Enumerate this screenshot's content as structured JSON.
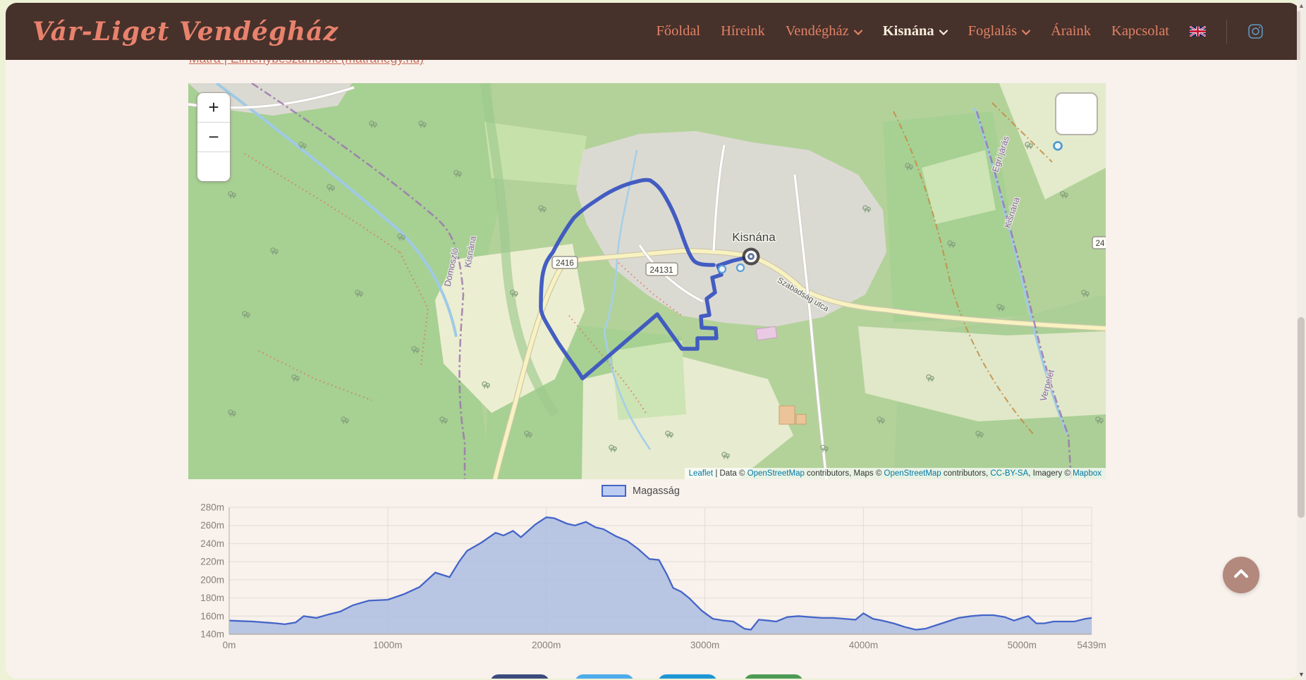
{
  "header": {
    "logo": "Vár-Liget Vendégház",
    "nav": {
      "items": [
        {
          "label": "Főoldal",
          "dropdown": false,
          "active": false
        },
        {
          "label": "Híreink",
          "dropdown": false,
          "active": false
        },
        {
          "label": "Vendégház",
          "dropdown": true,
          "active": false
        },
        {
          "label": "Kisnána",
          "dropdown": true,
          "active": true
        },
        {
          "label": "Foglalás",
          "dropdown": true,
          "active": false
        },
        {
          "label": "Áraink",
          "dropdown": false,
          "active": false
        },
        {
          "label": "Kapcsolat",
          "dropdown": false,
          "active": false
        }
      ],
      "language_icon": "uk-flag-icon",
      "social_icon": "instagram-icon"
    },
    "colors": {
      "background": "#47312b",
      "link": "#e08265",
      "active_link": "#f8eedd"
    }
  },
  "breadcrumb": {
    "link_text": "Mátra | Élménybeszámolók (matrahegy.hu)"
  },
  "map": {
    "place_label": "Kisnána",
    "street_label": "Szabadság utca",
    "road_shields": {
      "s2416": "2416",
      "s24131": "24131",
      "s24": "24"
    },
    "boundary_labels": {
      "left_east": "Kisnána",
      "left_west": "Domoszló",
      "right_north": "Egri járás",
      "right_south": "Kisnána",
      "right_low": "Verpelét"
    },
    "controls": {
      "zoom_in": "+",
      "zoom_out": "−"
    },
    "attribution": {
      "leaflet": "Leaflet",
      "sep1": " | Data © ",
      "osm1": "OpenStreetMap",
      "mid1": " contributors, Maps © ",
      "osm2": "OpenStreetMap",
      "mid2": " contributors, ",
      "ccbysa": "CC-BY-SA",
      "mid3": ", Imagery © ",
      "mapbox": "Mapbox"
    },
    "route_color": "#3b55c0"
  },
  "chart_data": {
    "type": "area",
    "title": "",
    "legend": [
      {
        "label": "Magasság",
        "fill": "#bdcdf2",
        "stroke": "#4465c8"
      }
    ],
    "xlabel": "",
    "ylabel": "",
    "x_unit": "m",
    "y_unit": "m",
    "xlim": [
      0,
      5439
    ],
    "ylim": [
      140,
      280
    ],
    "x_ticks": [
      0,
      1000,
      2000,
      3000,
      4000,
      5000,
      5439
    ],
    "y_ticks": [
      140,
      160,
      180,
      200,
      220,
      240,
      260,
      280
    ],
    "grid": true,
    "legend_position": "top-center",
    "series": [
      {
        "name": "Magasság",
        "x": [
          0,
          150,
          300,
          350,
          420,
          470,
          550,
          630,
          700,
          780,
          880,
          1000,
          1100,
          1200,
          1250,
          1300,
          1390,
          1450,
          1500,
          1590,
          1680,
          1730,
          1790,
          1840,
          1930,
          2000,
          2050,
          2130,
          2180,
          2250,
          2310,
          2360,
          2440,
          2510,
          2580,
          2650,
          2710,
          2760,
          2800,
          2850,
          2900,
          2980,
          3050,
          3120,
          3180,
          3250,
          3290,
          3340,
          3400,
          3450,
          3520,
          3590,
          3660,
          3740,
          3810,
          3880,
          3950,
          4000,
          4060,
          4120,
          4190,
          4260,
          4330,
          4390,
          4460,
          4530,
          4600,
          4680,
          4750,
          4820,
          4890,
          4950,
          5000,
          5040,
          5090,
          5140,
          5200,
          5260,
          5330,
          5400,
          5439
        ],
        "y": [
          155,
          154,
          152,
          151,
          153,
          160,
          158,
          162,
          165,
          172,
          177,
          178,
          184,
          192,
          200,
          208,
          203,
          220,
          232,
          241,
          252,
          249,
          254,
          247,
          261,
          269,
          268,
          262,
          260,
          264,
          258,
          256,
          248,
          243,
          234,
          223,
          222,
          206,
          191,
          187,
          180,
          166,
          157,
          155,
          154,
          146,
          145,
          156,
          155,
          154,
          159,
          160,
          159,
          158,
          158,
          157,
          156,
          163,
          157,
          155,
          152,
          148,
          145,
          146,
          150,
          154,
          158,
          160,
          161,
          161,
          159,
          155,
          158,
          160,
          152,
          152,
          154,
          154,
          154,
          157,
          158
        ]
      }
    ],
    "area_fill": "#a9bce1",
    "line_color": "#4465c8"
  },
  "footer_buttons": [
    {
      "name": "share-button-1",
      "color": "#3c4a7d"
    },
    {
      "name": "share-button-2",
      "color": "#4fabea"
    },
    {
      "name": "share-button-3",
      "color": "#1d97d4"
    },
    {
      "name": "share-button-4",
      "color": "#4d9a55"
    }
  ],
  "icons": {
    "scroll_top": "chevron-up-icon",
    "dropdown": "chevron-down-icon",
    "language": "uk-flag-icon",
    "social": "instagram-icon"
  }
}
